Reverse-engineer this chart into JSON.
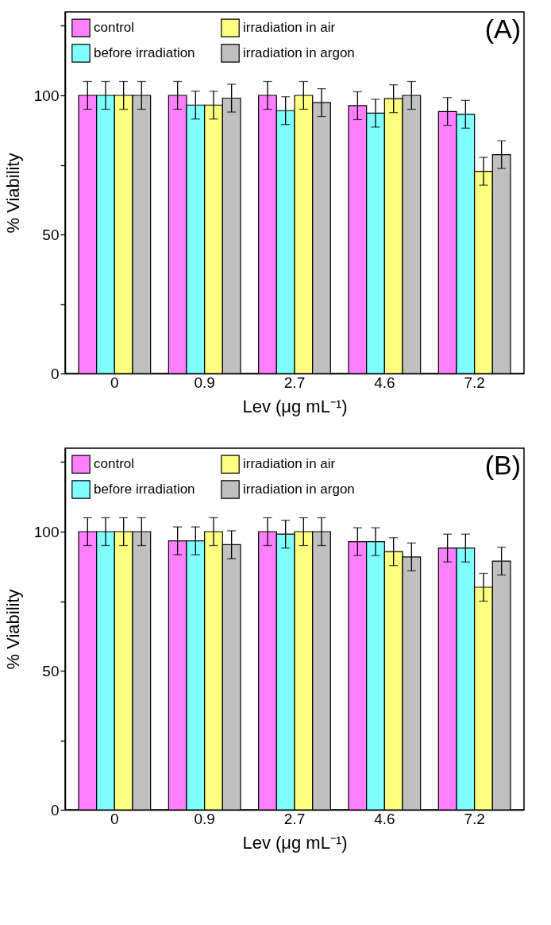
{
  "chart_data": [
    {
      "type": "bar",
      "annotations": [
        "(A)"
      ],
      "xlabel": "Lev (μg mL⁻¹)",
      "ylabel": "% Viability",
      "categories": [
        "0",
        "0.9",
        "2.7",
        "4.6",
        "7.2"
      ],
      "series": [
        {
          "name": "control",
          "color": "#ff80ff",
          "values": [
            100,
            100,
            100,
            96.3,
            94.2
          ],
          "errors": [
            5,
            5,
            5,
            5,
            5
          ]
        },
        {
          "name": "before irradiation",
          "color": "#80ffff",
          "values": [
            100,
            96.5,
            94.5,
            93.6,
            93.2
          ],
          "errors": [
            5,
            5,
            5,
            5,
            5
          ]
        },
        {
          "name": "irradiation in air",
          "color": "#ffff80",
          "values": [
            100,
            96.5,
            100,
            98.8,
            72.7
          ],
          "errors": [
            5,
            5,
            5,
            5,
            5
          ]
        },
        {
          "name": "irradiation in argon",
          "color": "#c0c0c0",
          "values": [
            100,
            99,
            97.4,
            100,
            78.7
          ],
          "errors": [
            5,
            5,
            5,
            5,
            5
          ]
        }
      ],
      "ylim": [
        0,
        130
      ],
      "yticks": [
        0,
        {
          "value": 25,
          "label": null
        },
        50,
        {
          "value": 75,
          "label": null
        },
        100,
        {
          "value": 125,
          "label": null
        }
      ],
      "legend": "top left"
    },
    {
      "type": "bar",
      "annotations": [
        "(B)"
      ],
      "xlabel": "Lev (μg mL⁻¹)",
      "ylabel": "% Viability",
      "categories": [
        "0",
        "0.9",
        "2.7",
        "4.6",
        "7.2"
      ],
      "series": [
        {
          "name": "control",
          "color": "#ff80ff",
          "values": [
            100,
            96.7,
            100,
            96.4,
            94.1
          ],
          "errors": [
            5,
            5,
            5,
            5,
            5
          ]
        },
        {
          "name": "before irradiation",
          "color": "#80ffff",
          "values": [
            100,
            96.7,
            99.1,
            96.4,
            94.1
          ],
          "errors": [
            5,
            5,
            5,
            5,
            5
          ]
        },
        {
          "name": "irradiation in air",
          "color": "#ffff80",
          "values": [
            100,
            100,
            100,
            92.8,
            80
          ],
          "errors": [
            5,
            5,
            5,
            5,
            5
          ]
        },
        {
          "name": "irradiation in argon",
          "color": "#c0c0c0",
          "values": [
            100,
            95.3,
            100,
            90.9,
            89.4
          ],
          "errors": [
            5,
            5,
            5,
            5,
            5
          ]
        }
      ],
      "ylim": [
        0,
        130
      ],
      "yticks": [
        0,
        {
          "value": 25,
          "label": null
        },
        50,
        {
          "value": 75,
          "label": null
        },
        100,
        {
          "value": 125,
          "label": null
        }
      ],
      "legend": "top left"
    }
  ]
}
